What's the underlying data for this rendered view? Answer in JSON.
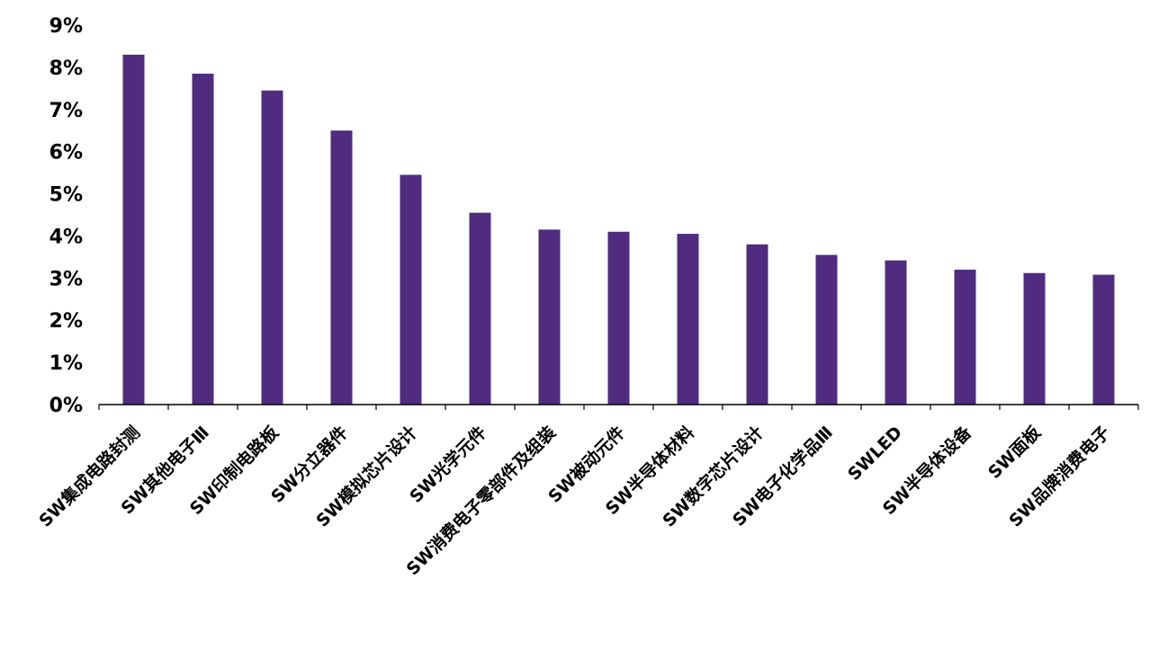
{
  "chart_data": {
    "type": "bar",
    "title": "",
    "xlabel": "",
    "ylabel": "",
    "ylim": [
      0,
      9
    ],
    "y_ticks": [
      "0%",
      "1%",
      "2%",
      "3%",
      "4%",
      "5%",
      "6%",
      "7%",
      "8%",
      "9%"
    ],
    "grid": false,
    "legend": "none",
    "colors": {
      "bar": "#4F2C80",
      "axis": "#000000"
    },
    "categories": [
      "SW集成电路封测",
      "SW其他电子Ⅲ",
      "SW印制电路板",
      "SW分立器件",
      "SW模拟芯片设计",
      "SW光学元件",
      "SW消费电子零部件及组装",
      "SW被动元件",
      "SW半导体材料",
      "SW数字芯片设计",
      "SW电子化学品Ⅲ",
      "SWLED",
      "SW半导体设备",
      "SW面板",
      "SW品牌消费电子"
    ],
    "values": [
      8.3,
      7.85,
      7.45,
      6.5,
      5.45,
      4.55,
      4.15,
      4.1,
      4.05,
      3.8,
      3.55,
      3.42,
      3.2,
      3.12,
      3.08
    ]
  }
}
